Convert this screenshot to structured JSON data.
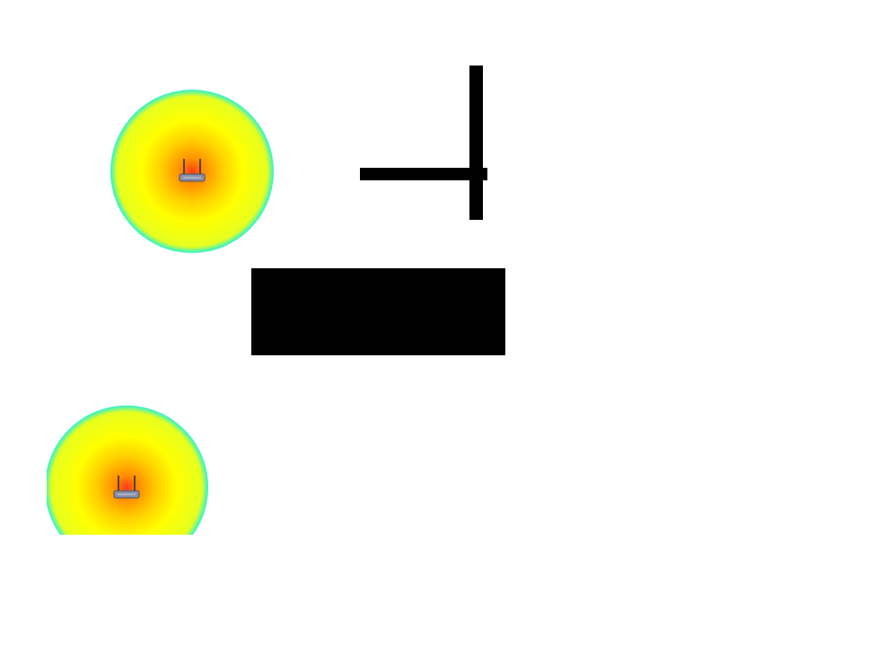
{
  "heatmap": {
    "gradient_colors": [
      "#ff3b1a",
      "#ff8c00",
      "#ffd000",
      "#ffff00",
      "#e6ff1f",
      "#2ef2d0"
    ]
  },
  "access_points": [
    {
      "id": "ap-1",
      "icon": "wifi-router-icon"
    },
    {
      "id": "ap-2",
      "icon": "wifi-router-icon"
    }
  ],
  "obstacles": [
    {
      "id": "wall-vertical",
      "type": "wall",
      "color": "#000000"
    },
    {
      "id": "wall-horizontal",
      "type": "wall",
      "color": "#000000"
    },
    {
      "id": "block",
      "type": "block",
      "color": "#000000"
    }
  ]
}
